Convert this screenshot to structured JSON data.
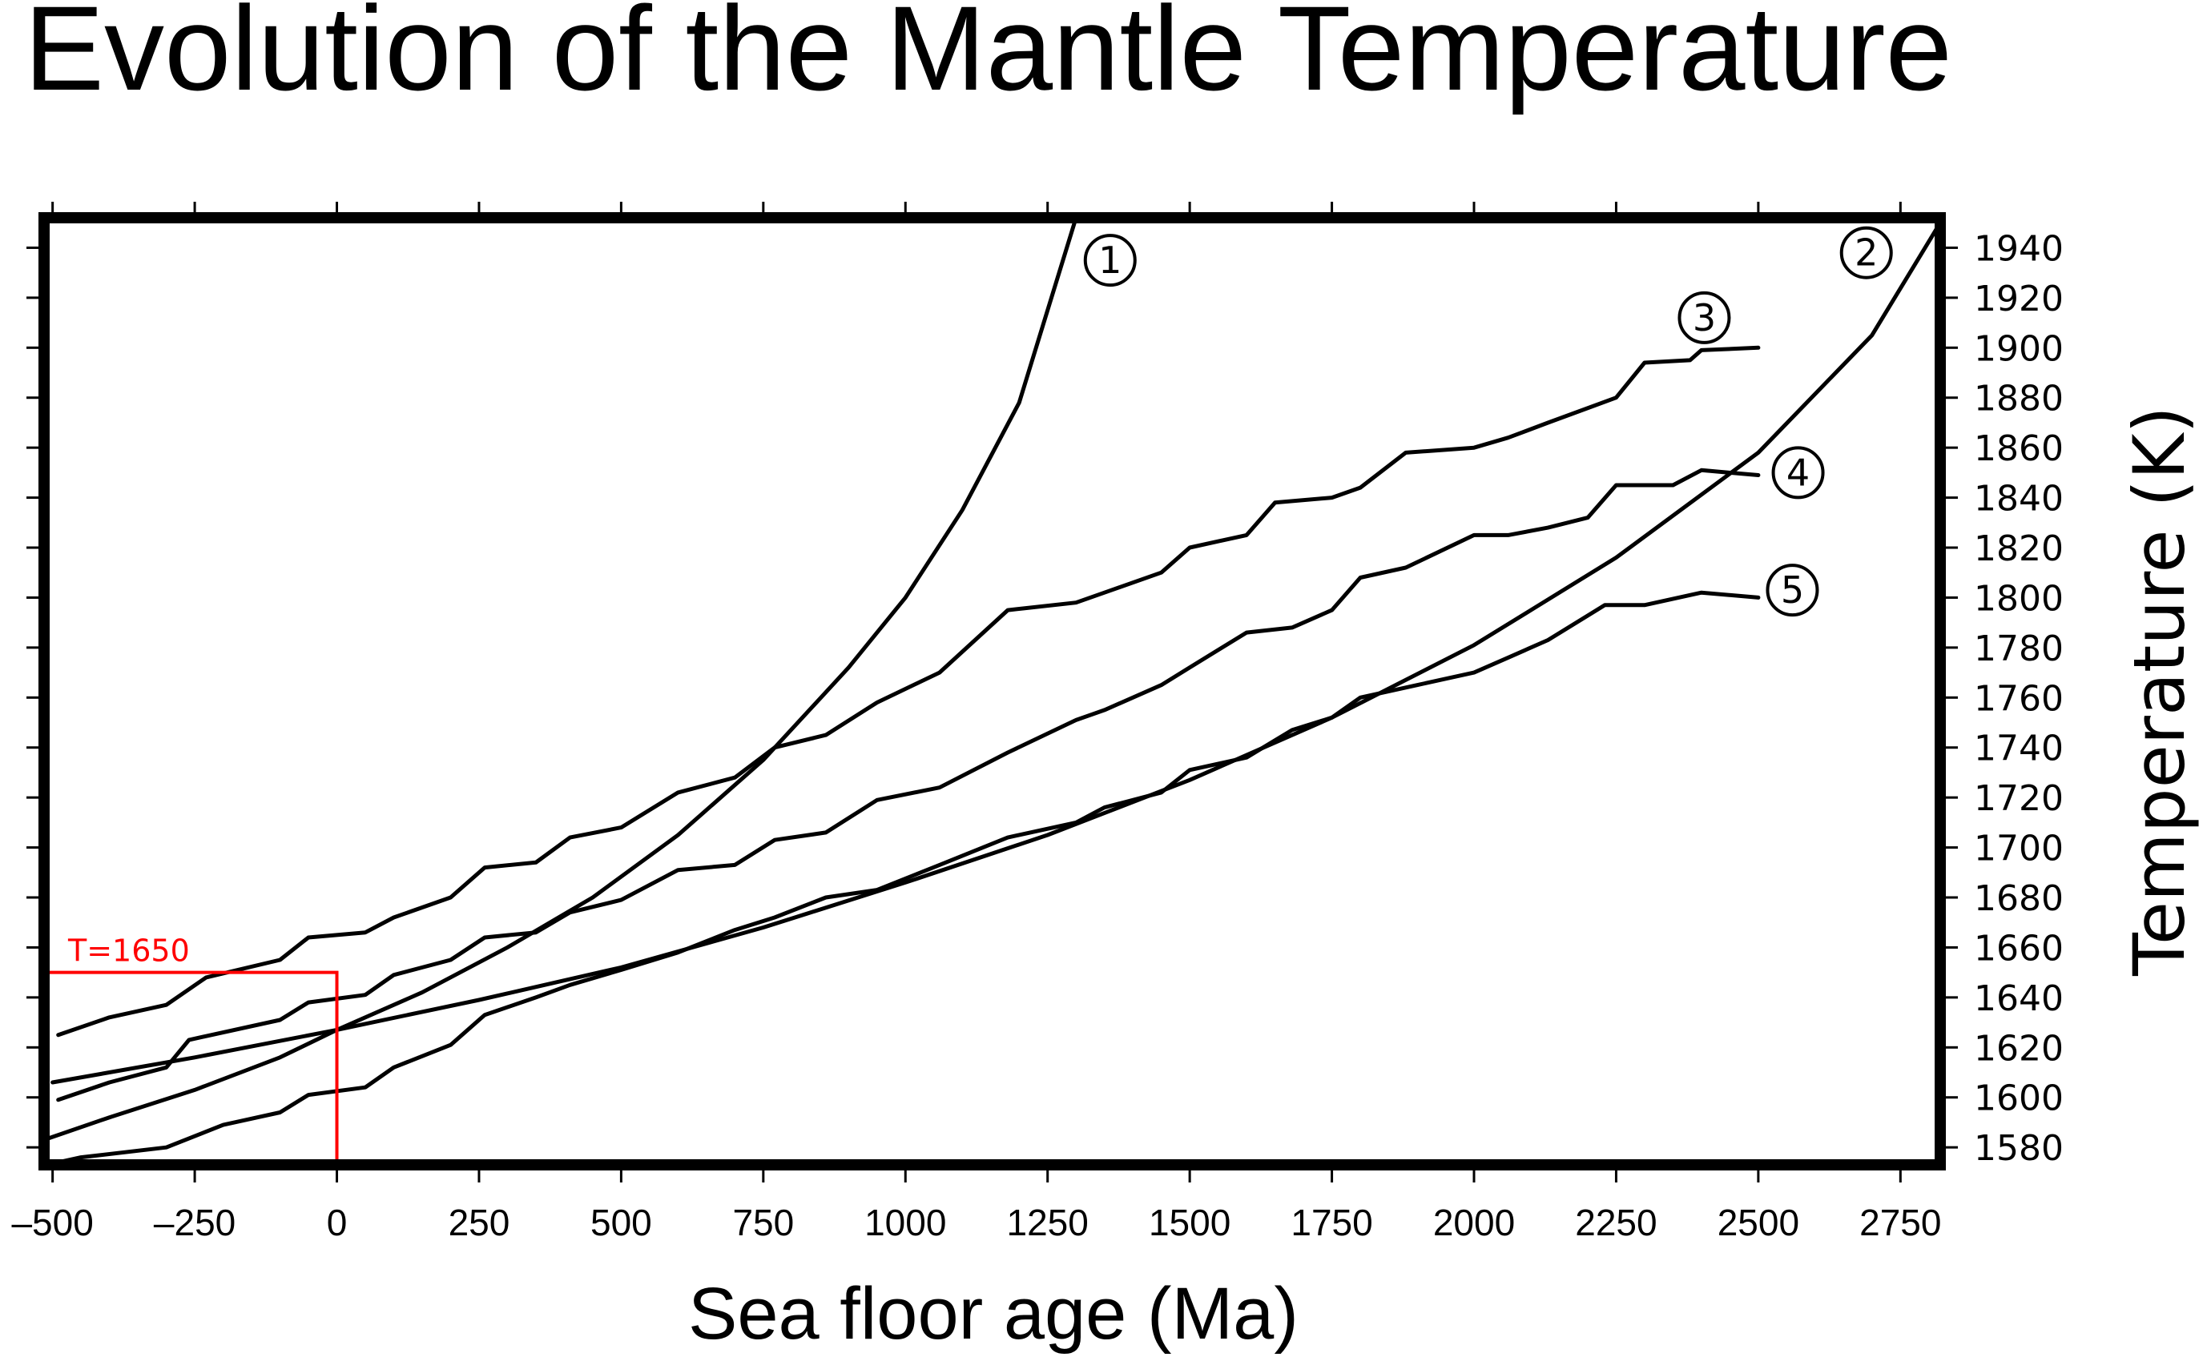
{
  "chart_data": {
    "type": "line",
    "title": "Evolution of the Mantle Temperature",
    "xlabel": "Sea floor age (Ma)",
    "ylabel": "Temperature (K)",
    "xlim": [
      -515,
      2820
    ],
    "ylim": [
      1573,
      1952
    ],
    "xticks": [
      -500,
      -250,
      0,
      250,
      500,
      750,
      1000,
      1250,
      1500,
      1750,
      2000,
      2250,
      2500,
      2750
    ],
    "xtick_labels": [
      "–500",
      "–250",
      "0",
      "250",
      "500",
      "750",
      "1000",
      "1250",
      "1500",
      "1750",
      "2000",
      "2250",
      "2500",
      "2750"
    ],
    "yticks": [
      1580,
      1600,
      1620,
      1640,
      1660,
      1680,
      1700,
      1720,
      1740,
      1760,
      1780,
      1800,
      1820,
      1840,
      1860,
      1880,
      1900,
      1920,
      1940
    ],
    "ytick_labels": [
      "1580",
      "1600",
      "1620",
      "1640",
      "1660",
      "1680",
      "1700",
      "1720",
      "1740",
      "1760",
      "1780",
      "1800",
      "1820",
      "1840",
      "1860",
      "1880",
      "1900",
      "1920",
      "1940"
    ],
    "yaxis_side": "right",
    "grid": false,
    "series": [
      {
        "name": "1",
        "label": "①",
        "x": [
          -515,
          -400,
          -250,
          -100,
          0,
          150,
          300,
          450,
          600,
          750,
          900,
          1000,
          1100,
          1200,
          1300
        ],
        "y": [
          1583,
          1592,
          1603,
          1616,
          1627,
          1642,
          1660,
          1680,
          1705,
          1735,
          1772,
          1800,
          1835,
          1878,
          1952
        ],
        "label_at": [
          1360,
          1935
        ]
      },
      {
        "name": "2",
        "label": "②",
        "x": [
          -500,
          -250,
          0,
          250,
          500,
          750,
          1000,
          1250,
          1500,
          1750,
          2000,
          2250,
          2500,
          2700,
          2820
        ],
        "y": [
          1606,
          1616,
          1627,
          1639,
          1652,
          1668,
          1686,
          1705,
          1727,
          1752,
          1781,
          1816,
          1858,
          1905,
          1950
        ],
        "label_at": [
          2690,
          1938
        ]
      },
      {
        "name": "3",
        "label": "③",
        "x": [
          -490,
          -400,
          -300,
          -230,
          -100,
          -50,
          50,
          100,
          200,
          260,
          350,
          410,
          500,
          600,
          700,
          770,
          860,
          950,
          1060,
          1180,
          1300,
          1350,
          1450,
          1500,
          1600,
          1650,
          1750,
          1800,
          1880,
          2000,
          2060,
          2130,
          2250,
          2300,
          2380,
          2400,
          2500
        ],
        "y": [
          1625,
          1632,
          1637,
          1648,
          1655,
          1664,
          1666,
          1672,
          1680,
          1692,
          1694,
          1704,
          1708,
          1722,
          1728,
          1740,
          1745,
          1758,
          1770,
          1795,
          1798,
          1802,
          1810,
          1820,
          1825,
          1838,
          1840,
          1844,
          1858,
          1860,
          1864,
          1870,
          1880,
          1894,
          1895,
          1899,
          1900
        ],
        "label_at": [
          2405,
          1912
        ]
      },
      {
        "name": "4",
        "label": "④",
        "x": [
          -490,
          -400,
          -300,
          -260,
          -100,
          -50,
          50,
          100,
          200,
          260,
          350,
          410,
          500,
          600,
          700,
          770,
          860,
          950,
          1060,
          1180,
          1300,
          1350,
          1450,
          1500,
          1600,
          1680,
          1750,
          1800,
          1880,
          2000,
          2060,
          2130,
          2200,
          2250,
          2350,
          2400,
          2500
        ],
        "y": [
          1599,
          1606,
          1612,
          1623,
          1631,
          1638,
          1641,
          1649,
          1655,
          1664,
          1666,
          1674,
          1679,
          1691,
          1693,
          1703,
          1706,
          1719,
          1724,
          1738,
          1751,
          1755,
          1765,
          1772,
          1786,
          1788,
          1795,
          1808,
          1812,
          1825,
          1825,
          1828,
          1832,
          1845,
          1845,
          1851,
          1849
        ],
        "label_at": [
          2570,
          1850
        ]
      },
      {
        "name": "5",
        "label": "⑤",
        "x": [
          -510,
          -450,
          -300,
          -200,
          -100,
          -50,
          50,
          100,
          200,
          260,
          350,
          410,
          500,
          600,
          700,
          770,
          860,
          950,
          1060,
          1180,
          1300,
          1350,
          1450,
          1500,
          1600,
          1680,
          1750,
          1800,
          1900,
          2000,
          2060,
          2130,
          2230,
          2300,
          2380,
          2400,
          2500
        ],
        "y": [
          1573,
          1576,
          1580,
          1589,
          1594,
          1601,
          1604,
          1612,
          1621,
          1633,
          1640,
          1645,
          1651,
          1658,
          1667,
          1672,
          1680,
          1683,
          1693,
          1704,
          1710,
          1716,
          1722,
          1731,
          1736,
          1747,
          1752,
          1760,
          1765,
          1770,
          1776,
          1783,
          1797,
          1797,
          1801,
          1802,
          1800
        ],
        "label_at": [
          2560,
          1803
        ]
      }
    ],
    "annotations": [
      {
        "text": "T=1650",
        "color": "#ff0000",
        "x": 0,
        "y": 1650
      }
    ]
  }
}
